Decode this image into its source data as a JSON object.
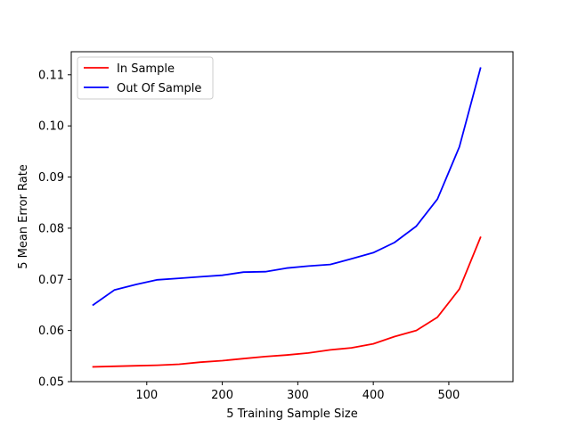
{
  "chart_data": {
    "type": "line",
    "title": "",
    "xlabel": "5 Training Sample Size",
    "ylabel": "5 Mean Error Rate",
    "xlim": [
      0,
      585
    ],
    "ylim": [
      0.05,
      0.1145
    ],
    "xticks": [
      100,
      200,
      300,
      400,
      500
    ],
    "yticks": [
      0.05,
      0.06,
      0.07,
      0.08,
      0.09,
      0.1,
      0.11
    ],
    "ytick_labels": [
      "0.05",
      "0.06",
      "0.07",
      "0.08",
      "0.09",
      "0.10",
      "0.11"
    ],
    "grid": false,
    "legend_position": "top-left",
    "x": [
      29,
      57,
      86,
      114,
      143,
      171,
      200,
      228,
      257,
      285,
      314,
      343,
      371,
      400,
      428,
      457,
      485,
      514,
      542
    ],
    "series": [
      {
        "name": "In Sample",
        "color": "#ff0000",
        "values": [
          0.0529,
          0.053,
          0.0531,
          0.0532,
          0.0534,
          0.0538,
          0.0541,
          0.0545,
          0.0549,
          0.0552,
          0.0556,
          0.0562,
          0.0566,
          0.0574,
          0.0588,
          0.06,
          0.0626,
          0.0681,
          0.0782
        ]
      },
      {
        "name": "Out Of Sample",
        "color": "#0000ff",
        "values": [
          0.065,
          0.0679,
          0.069,
          0.0699,
          0.0702,
          0.0705,
          0.0708,
          0.0714,
          0.0715,
          0.0722,
          0.0726,
          0.0729,
          0.074,
          0.0752,
          0.0772,
          0.0804,
          0.0857,
          0.0959,
          0.1113
        ]
      }
    ]
  }
}
